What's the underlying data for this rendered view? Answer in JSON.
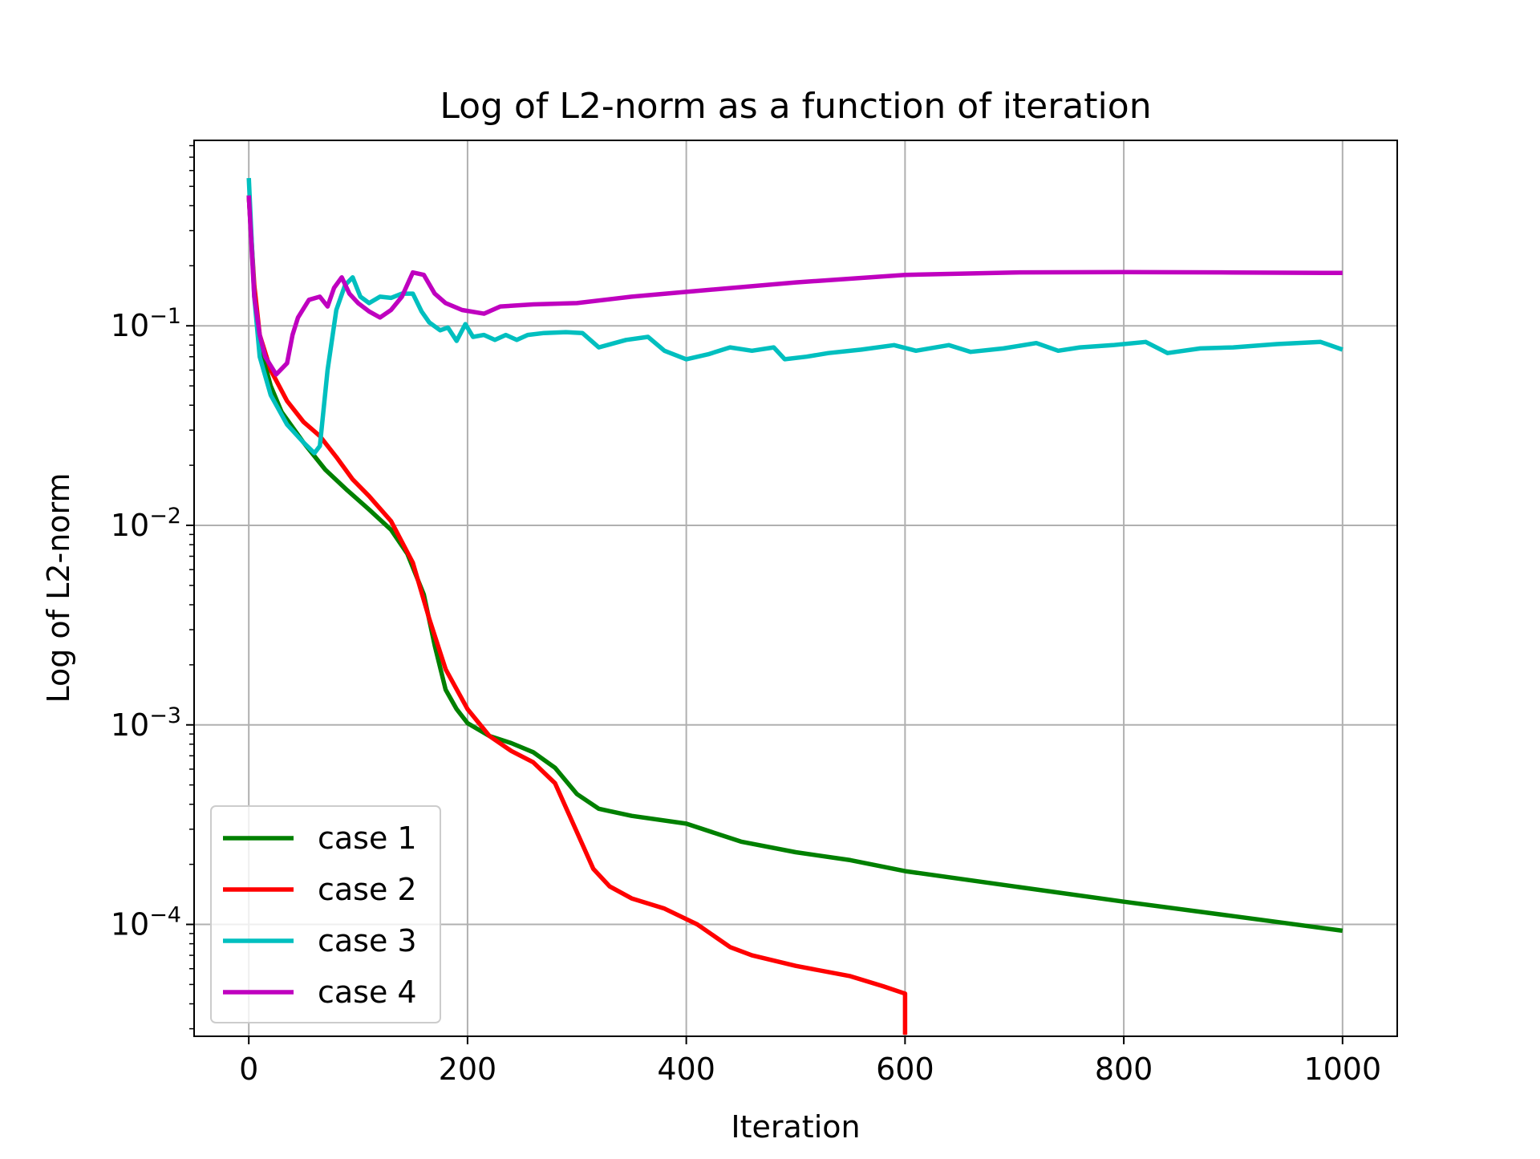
{
  "chart_data": {
    "type": "line",
    "title": "Log of L2-norm as a function of iteration",
    "xlabel": "Iteration",
    "ylabel": "Log of L2-norm",
    "xlim": [
      -50,
      1050
    ],
    "ylim": [
      2.75e-05,
      0.85
    ],
    "yscale": "log",
    "grid": true,
    "legend_position": "lower-left",
    "x_ticks": [
      {
        "value": 0,
        "label": "0"
      },
      {
        "value": 200,
        "label": "200"
      },
      {
        "value": 400,
        "label": "400"
      },
      {
        "value": 600,
        "label": "600"
      },
      {
        "value": 800,
        "label": "800"
      },
      {
        "value": 1000,
        "label": "1000"
      }
    ],
    "y_ticks": [
      {
        "value": 0.1,
        "base": "10",
        "exp": "−1"
      },
      {
        "value": 0.01,
        "base": "10",
        "exp": "−2"
      },
      {
        "value": 0.001,
        "base": "10",
        "exp": "−3"
      },
      {
        "value": 0.0001,
        "base": "10",
        "exp": "−4"
      }
    ],
    "series": [
      {
        "name": "case 1",
        "color": "#008000",
        "points": [
          [
            0,
            0.45
          ],
          [
            5,
            0.15
          ],
          [
            10,
            0.08
          ],
          [
            20,
            0.05
          ],
          [
            30,
            0.037
          ],
          [
            50,
            0.026
          ],
          [
            70,
            0.019
          ],
          [
            90,
            0.015
          ],
          [
            110,
            0.012
          ],
          [
            130,
            0.0095
          ],
          [
            145,
            0.0072
          ],
          [
            160,
            0.0045
          ],
          [
            170,
            0.0025
          ],
          [
            180,
            0.0015
          ],
          [
            190,
            0.0012
          ],
          [
            200,
            0.00102
          ],
          [
            220,
            0.00088
          ],
          [
            240,
            0.00081
          ],
          [
            260,
            0.00073
          ],
          [
            280,
            0.00061
          ],
          [
            300,
            0.00045
          ],
          [
            320,
            0.00038
          ],
          [
            350,
            0.00035
          ],
          [
            400,
            0.00032
          ],
          [
            450,
            0.00026
          ],
          [
            500,
            0.00023
          ],
          [
            550,
            0.00021
          ],
          [
            600,
            0.000185
          ],
          [
            700,
            0.000155
          ],
          [
            800,
            0.00013
          ],
          [
            900,
            0.00011
          ],
          [
            1000,
            9.3e-05
          ]
        ]
      },
      {
        "name": "case 2",
        "color": "#ff0000",
        "points": [
          [
            0,
            0.45
          ],
          [
            5,
            0.16
          ],
          [
            10,
            0.09
          ],
          [
            20,
            0.06
          ],
          [
            35,
            0.042
          ],
          [
            50,
            0.033
          ],
          [
            65,
            0.028
          ],
          [
            80,
            0.022
          ],
          [
            95,
            0.017
          ],
          [
            110,
            0.014
          ],
          [
            130,
            0.0105
          ],
          [
            150,
            0.0065
          ],
          [
            165,
            0.0034
          ],
          [
            180,
            0.0019
          ],
          [
            200,
            0.0012
          ],
          [
            220,
            0.00088
          ],
          [
            240,
            0.00074
          ],
          [
            260,
            0.00065
          ],
          [
            280,
            0.00051
          ],
          [
            300,
            0.00029
          ],
          [
            315,
            0.00019
          ],
          [
            330,
            0.000155
          ],
          [
            350,
            0.000135
          ],
          [
            380,
            0.00012
          ],
          [
            410,
            0.0001
          ],
          [
            440,
            7.7e-05
          ],
          [
            460,
            7e-05
          ],
          [
            500,
            6.2e-05
          ],
          [
            550,
            5.5e-05
          ],
          [
            580,
            4.9e-05
          ],
          [
            600,
            4.5e-05
          ],
          [
            600,
            2.8e-05
          ]
        ]
      },
      {
        "name": "case 3",
        "color": "#00bfbf",
        "points": [
          [
            0,
            0.55
          ],
          [
            5,
            0.14
          ],
          [
            10,
            0.07
          ],
          [
            20,
            0.045
          ],
          [
            35,
            0.032
          ],
          [
            50,
            0.026
          ],
          [
            60,
            0.023
          ],
          [
            65,
            0.025
          ],
          [
            72,
            0.06
          ],
          [
            80,
            0.12
          ],
          [
            88,
            0.16
          ],
          [
            95,
            0.175
          ],
          [
            102,
            0.14
          ],
          [
            110,
            0.13
          ],
          [
            120,
            0.14
          ],
          [
            130,
            0.138
          ],
          [
            140,
            0.145
          ],
          [
            150,
            0.145
          ],
          [
            158,
            0.118
          ],
          [
            165,
            0.104
          ],
          [
            175,
            0.095
          ],
          [
            182,
            0.098
          ],
          [
            190,
            0.084
          ],
          [
            198,
            0.102
          ],
          [
            205,
            0.088
          ],
          [
            215,
            0.09
          ],
          [
            225,
            0.085
          ],
          [
            235,
            0.09
          ],
          [
            245,
            0.085
          ],
          [
            255,
            0.09
          ],
          [
            270,
            0.092
          ],
          [
            290,
            0.093
          ],
          [
            305,
            0.092
          ],
          [
            320,
            0.078
          ],
          [
            345,
            0.085
          ],
          [
            365,
            0.088
          ],
          [
            380,
            0.075
          ],
          [
            400,
            0.068
          ],
          [
            420,
            0.072
          ],
          [
            440,
            0.078
          ],
          [
            460,
            0.075
          ],
          [
            480,
            0.078
          ],
          [
            490,
            0.068
          ],
          [
            510,
            0.07
          ],
          [
            530,
            0.073
          ],
          [
            560,
            0.076
          ],
          [
            590,
            0.08
          ],
          [
            610,
            0.075
          ],
          [
            640,
            0.08
          ],
          [
            660,
            0.074
          ],
          [
            690,
            0.077
          ],
          [
            720,
            0.082
          ],
          [
            740,
            0.075
          ],
          [
            760,
            0.078
          ],
          [
            790,
            0.08
          ],
          [
            820,
            0.083
          ],
          [
            840,
            0.073
          ],
          [
            870,
            0.077
          ],
          [
            900,
            0.078
          ],
          [
            940,
            0.081
          ],
          [
            980,
            0.083
          ],
          [
            1000,
            0.076
          ]
        ]
      },
      {
        "name": "case 4",
        "color": "#bf00bf",
        "points": [
          [
            0,
            0.45
          ],
          [
            5,
            0.14
          ],
          [
            10,
            0.09
          ],
          [
            15,
            0.07
          ],
          [
            25,
            0.057
          ],
          [
            35,
            0.065
          ],
          [
            40,
            0.09
          ],
          [
            45,
            0.11
          ],
          [
            55,
            0.135
          ],
          [
            65,
            0.14
          ],
          [
            72,
            0.125
          ],
          [
            78,
            0.155
          ],
          [
            85,
            0.175
          ],
          [
            92,
            0.145
          ],
          [
            100,
            0.13
          ],
          [
            110,
            0.118
          ],
          [
            120,
            0.11
          ],
          [
            130,
            0.12
          ],
          [
            140,
            0.14
          ],
          [
            150,
            0.185
          ],
          [
            160,
            0.18
          ],
          [
            170,
            0.145
          ],
          [
            180,
            0.13
          ],
          [
            195,
            0.12
          ],
          [
            215,
            0.115
          ],
          [
            230,
            0.125
          ],
          [
            260,
            0.128
          ],
          [
            300,
            0.13
          ],
          [
            350,
            0.14
          ],
          [
            400,
            0.148
          ],
          [
            500,
            0.165
          ],
          [
            600,
            0.18
          ],
          [
            700,
            0.185
          ],
          [
            800,
            0.186
          ],
          [
            900,
            0.185
          ],
          [
            1000,
            0.184
          ]
        ]
      }
    ]
  }
}
